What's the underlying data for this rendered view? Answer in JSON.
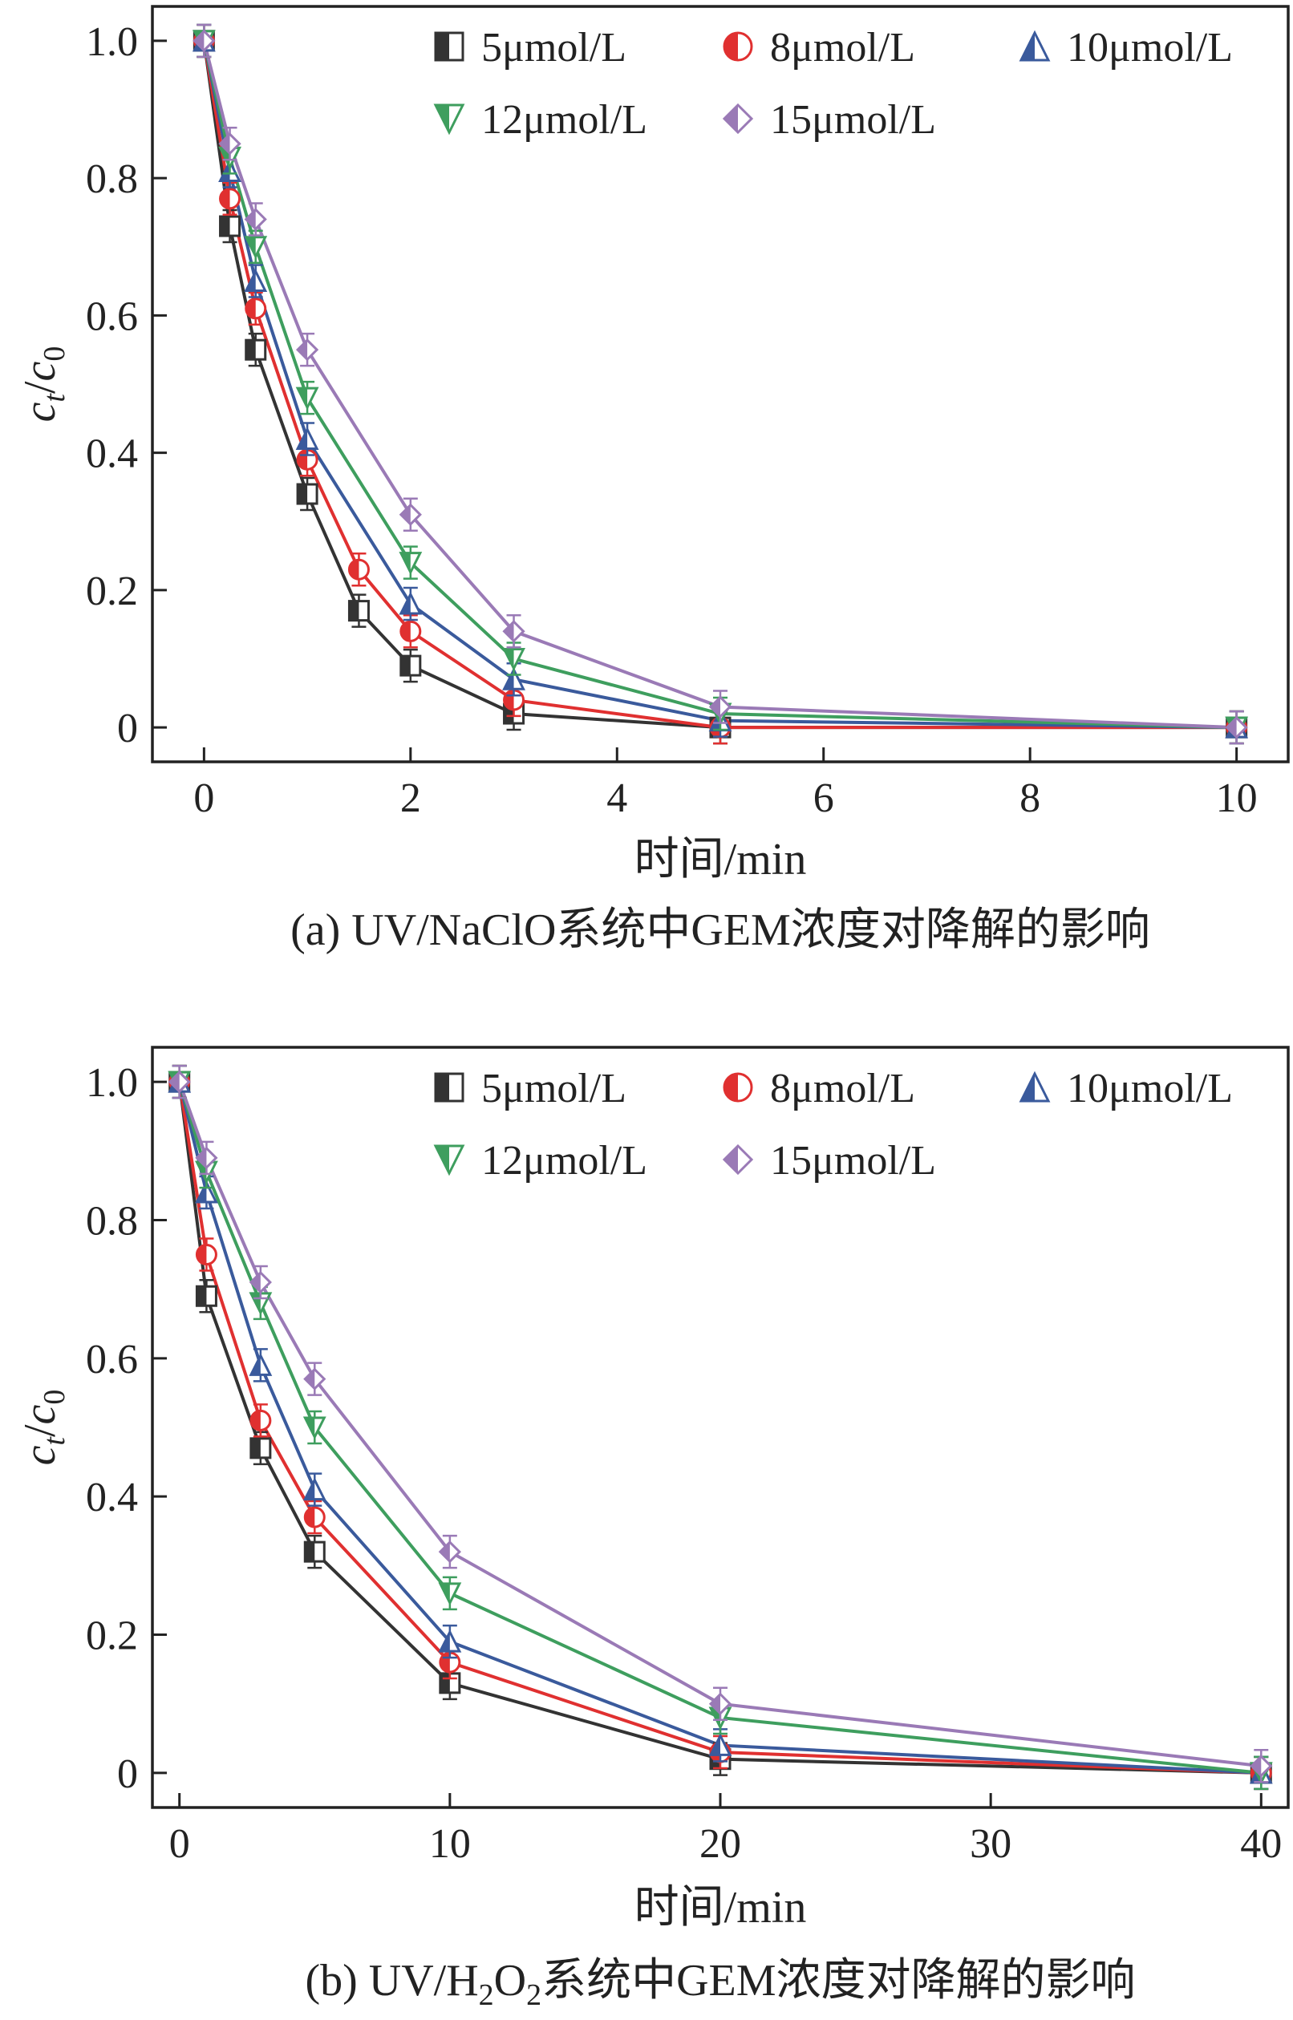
{
  "chart_data": [
    {
      "type": "line",
      "title": "(a) UV/NaClO系统中GEM浓度对降解的影响",
      "xlabel": "时间/min",
      "ylabel_main": "c",
      "ylabel_sub1": "t",
      "ylabel_slash": "/",
      "ylabel_main2": "c",
      "ylabel_sub2": "0",
      "xlim": [
        -0.5,
        10.5
      ],
      "ylim": [
        -0.05,
        1.05
      ],
      "xticks": [
        0,
        2,
        4,
        6,
        8,
        10
      ],
      "xtick_labels": [
        "0",
        "2",
        "4",
        "6",
        "8",
        "10"
      ],
      "yticks": [
        0,
        0.2,
        0.4,
        0.6,
        0.8,
        1.0
      ],
      "ytick_labels": [
        "0",
        "0.2",
        "0.4",
        "0.6",
        "0.8",
        "1.0"
      ],
      "legend_position": "top",
      "series": [
        {
          "name": "5μmol/L",
          "color": "#333333",
          "marker": "half-square",
          "x": [
            0,
            0.25,
            0.5,
            1,
            1.5,
            2,
            3,
            5,
            10
          ],
          "y": [
            1.0,
            0.73,
            0.55,
            0.34,
            0.17,
            0.09,
            0.02,
            0.0,
            0.0
          ]
        },
        {
          "name": "8μmol/L",
          "color": "#e03030",
          "marker": "half-circle",
          "x": [
            0,
            0.25,
            0.5,
            1,
            1.5,
            2,
            3,
            5,
            10
          ],
          "y": [
            1.0,
            0.77,
            0.61,
            0.39,
            0.23,
            0.14,
            0.04,
            0.0,
            0.0
          ]
        },
        {
          "name": "10μmol/L",
          "color": "#3a5a9c",
          "marker": "half-triangle-up",
          "x": [
            0,
            0.25,
            0.5,
            1,
            2,
            3,
            5,
            10
          ],
          "y": [
            1.0,
            0.81,
            0.65,
            0.42,
            0.18,
            0.07,
            0.01,
            0.0
          ]
        },
        {
          "name": "12μmol/L",
          "color": "#3e9e5e",
          "marker": "half-triangle-down",
          "x": [
            0,
            0.25,
            0.5,
            1,
            2,
            3,
            5,
            10
          ],
          "y": [
            1.0,
            0.83,
            0.7,
            0.48,
            0.24,
            0.1,
            0.02,
            0.0
          ]
        },
        {
          "name": "15μmol/L",
          "color": "#9a7ab6",
          "marker": "half-diamond",
          "x": [
            0,
            0.25,
            0.5,
            1,
            2,
            3,
            5,
            10
          ],
          "y": [
            1.0,
            0.85,
            0.74,
            0.55,
            0.31,
            0.14,
            0.03,
            0.0
          ]
        }
      ]
    },
    {
      "type": "line",
      "title_part1": "(b) UV/H",
      "title_sub1": "2",
      "title_part2": "O",
      "title_sub2": "2",
      "title_part3": "系统中GEM浓度对降解的影响",
      "xlabel": "时间/min",
      "ylabel_main": "c",
      "ylabel_sub1": "t",
      "ylabel_slash": "/",
      "ylabel_main2": "c",
      "ylabel_sub2": "0",
      "xlim": [
        -1,
        41
      ],
      "ylim": [
        -0.05,
        1.05
      ],
      "xticks": [
        0,
        10,
        20,
        30,
        40
      ],
      "xtick_labels": [
        "0",
        "10",
        "20",
        "30",
        "40"
      ],
      "yticks": [
        0,
        0.2,
        0.4,
        0.6,
        0.8,
        1.0
      ],
      "ytick_labels": [
        "0",
        "0.2",
        "0.4",
        "0.6",
        "0.8",
        "1.0"
      ],
      "legend_position": "top",
      "series": [
        {
          "name": "5μmol/L",
          "color": "#333333",
          "marker": "half-square",
          "x": [
            0,
            1,
            3,
            5,
            10,
            20,
            40
          ],
          "y": [
            1.0,
            0.69,
            0.47,
            0.32,
            0.13,
            0.02,
            0.0
          ]
        },
        {
          "name": "8μmol/L",
          "color": "#e03030",
          "marker": "half-circle",
          "x": [
            0,
            1,
            3,
            5,
            10,
            20,
            40
          ],
          "y": [
            1.0,
            0.75,
            0.51,
            0.37,
            0.16,
            0.03,
            0.0
          ]
        },
        {
          "name": "10μmol/L",
          "color": "#3a5a9c",
          "marker": "half-triangle-up",
          "x": [
            0,
            1,
            3,
            5,
            10,
            20,
            40
          ],
          "y": [
            1.0,
            0.84,
            0.59,
            0.41,
            0.19,
            0.04,
            0.0
          ]
        },
        {
          "name": "12μmol/L",
          "color": "#3e9e5e",
          "marker": "half-triangle-down",
          "x": [
            0,
            1,
            3,
            5,
            10,
            20,
            40
          ],
          "y": [
            1.0,
            0.87,
            0.68,
            0.5,
            0.26,
            0.08,
            0.0
          ]
        },
        {
          "name": "15μmol/L",
          "color": "#9a7ab6",
          "marker": "half-diamond",
          "x": [
            0,
            1,
            3,
            5,
            10,
            20,
            40
          ],
          "y": [
            1.0,
            0.89,
            0.71,
            0.57,
            0.32,
            0.1,
            0.01
          ]
        }
      ]
    }
  ]
}
